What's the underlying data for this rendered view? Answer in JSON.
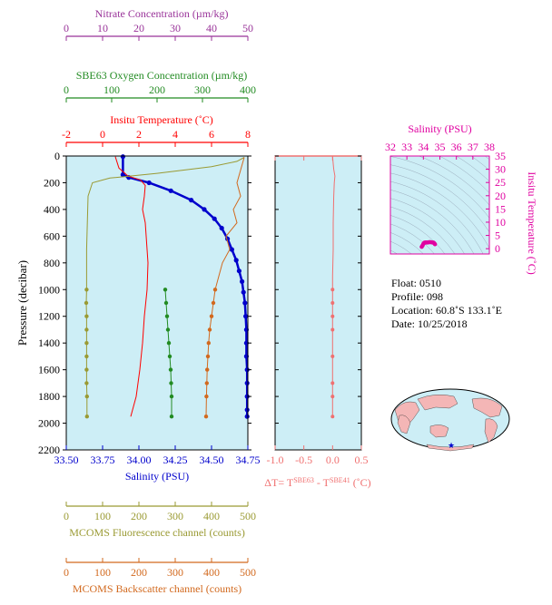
{
  "colors": {
    "nitrate": "#993399",
    "oxygen": "#228b22",
    "temperature": "#ff0000",
    "salinity": "#0000cc",
    "fluorescence": "#9a9a33",
    "backscatter": "#d2691e",
    "dt": "#f07070",
    "ts": "#e000a0",
    "plot_bg": "#cdeef6",
    "land": "#f4b6b6"
  },
  "main_axes": {
    "ylabel": "Pressure (decibar)",
    "yticks": [
      "0",
      "200",
      "400",
      "600",
      "800",
      "1000",
      "1200",
      "1400",
      "1600",
      "1800",
      "2000",
      "2200"
    ],
    "top_axes": [
      {
        "key": "nitrate",
        "label": "Nitrate Concentration (µm/kg)",
        "ticks": [
          "0",
          "10",
          "20",
          "30",
          "40",
          "50"
        ]
      },
      {
        "key": "oxygen",
        "label": "SBE63 Oxygen Concentration (µm/kg)",
        "ticks": [
          "0",
          "100",
          "200",
          "300",
          "400"
        ]
      },
      {
        "key": "temperature",
        "label": "Insitu Temperature (˚C)",
        "ticks": [
          "-2",
          "0",
          "2",
          "4",
          "6",
          "8"
        ]
      }
    ],
    "bottom_axes": [
      {
        "key": "salinity",
        "label": "Salinity (PSU)",
        "ticks": [
          "33.50",
          "33.75",
          "34.00",
          "34.25",
          "34.50",
          "34.75"
        ]
      },
      {
        "key": "fluorescence",
        "label": "MCOMS Fluorescence channel (counts)",
        "ticks": [
          "0",
          "100",
          "200",
          "300",
          "400",
          "500"
        ]
      },
      {
        "key": "backscatter",
        "label": "MCOMS Backscatter channel (counts)",
        "ticks": [
          "0",
          "100",
          "200",
          "300",
          "400",
          "500"
        ]
      }
    ]
  },
  "dt_panel": {
    "xticks": [
      "-1.0",
      "-0.5",
      "0.0",
      "0.5"
    ],
    "xlabel_prefix": "ΔT= T",
    "xlabel_sup1": "SBE63",
    "xlabel_mid": " - T",
    "xlabel_sup2": "SBE41",
    "xlabel_suffix": " (˚C)"
  },
  "ts_panel": {
    "xlabel": "Salinity (PSU)",
    "xticks": [
      "32",
      "33",
      "34",
      "35",
      "36",
      "37",
      "38"
    ],
    "ylabel": "Insitu Temperature (˚C)",
    "yticks": [
      "0",
      "5",
      "10",
      "15",
      "20",
      "25",
      "30",
      "35"
    ]
  },
  "info": {
    "float": "Float:  0510",
    "profile": "Profile:  098",
    "location": "Location:  60.8˚S  133.1˚E",
    "date": "Date:  10/25/2018"
  },
  "chart_data": [
    {
      "type": "line",
      "title": "",
      "ylabel": "Pressure (decibar)",
      "ylim": [
        2200,
        0
      ],
      "series": [
        {
          "name": "Salinity (PSU)",
          "axis": "salinity",
          "xlim": [
            33.5,
            34.75
          ],
          "x": [
            33.89,
            33.89,
            33.93,
            34.07,
            34.22,
            34.36,
            34.45,
            34.52,
            34.57,
            34.61,
            34.64,
            34.67,
            34.69,
            34.71,
            34.72,
            34.73,
            34.735,
            34.74,
            34.74,
            34.74,
            34.745,
            34.745,
            34.745,
            34.745,
            34.745
          ],
          "y": [
            5,
            140,
            160,
            200,
            260,
            330,
            400,
            470,
            540,
            620,
            700,
            780,
            860,
            940,
            1020,
            1100,
            1200,
            1300,
            1400,
            1500,
            1600,
            1700,
            1800,
            1900,
            1950
          ]
        },
        {
          "name": "Insitu Temperature (˚C)",
          "axis": "temperature",
          "xlim": [
            -2,
            8
          ],
          "x": [
            0.7,
            0.9,
            1.4,
            2.1,
            2.35,
            2.3,
            2.2,
            2.35,
            2.4,
            2.5,
            2.45,
            2.3,
            2.2,
            2.05,
            1.85,
            1.55
          ],
          "y": [
            5,
            90,
            150,
            180,
            220,
            300,
            400,
            500,
            600,
            800,
            1000,
            1200,
            1400,
            1600,
            1800,
            1950
          ]
        },
        {
          "name": "SBE63 Oxygen Concentration (µm/kg)",
          "axis": "oxygen",
          "xlim": [
            0,
            400
          ],
          "x": [
            218,
            220,
            222,
            224,
            226,
            228,
            230,
            231,
            232,
            232
          ],
          "y": [
            1000,
            1100,
            1200,
            1300,
            1400,
            1500,
            1600,
            1700,
            1800,
            1950
          ]
        },
        {
          "name": "MCOMS Fluorescence channel (counts)",
          "axis": "fluorescence",
          "xlim": [
            0,
            500
          ],
          "x": [
            490,
            470,
            400,
            250,
            120,
            72,
            60,
            58,
            56,
            56,
            55,
            56,
            56,
            56,
            56,
            56,
            56,
            57,
            57
          ],
          "y": [
            10,
            40,
            80,
            130,
            165,
            200,
            300,
            500,
            700,
            1000,
            1100,
            1200,
            1300,
            1400,
            1500,
            1600,
            1700,
            1800,
            1950
          ]
        },
        {
          "name": "MCOMS Backscatter channel (counts)",
          "axis": "backscatter",
          "xlim": [
            0,
            500
          ],
          "x": [
            490,
            470,
            480,
            460,
            470,
            440,
            450,
            430,
            420,
            410,
            405,
            400,
            395,
            392,
            390,
            388,
            387,
            386,
            385
          ],
          "y": [
            10,
            200,
            300,
            400,
            500,
            600,
            700,
            800,
            900,
            1000,
            1100,
            1200,
            1300,
            1400,
            1500,
            1600,
            1700,
            1800,
            1950
          ]
        }
      ]
    },
    {
      "type": "line",
      "title": "",
      "xlabel": "ΔT= T SBE63 - T SBE41 (˚C)",
      "xlim": [
        -1.0,
        0.5
      ],
      "ylim": [
        2200,
        0
      ],
      "series": [
        {
          "x": [
            0.0,
            0.02,
            0.04,
            0.03,
            0.02,
            0.01,
            0.01,
            0.0,
            0.0,
            0.0,
            0.0,
            0.0,
            0.0,
            0.0,
            0.0,
            0.0
          ],
          "y": [
            5,
            100,
            150,
            200,
            300,
            500,
            700,
            900,
            1000,
            1100,
            1200,
            1300,
            1500,
            1700,
            1800,
            1950
          ]
        }
      ]
    },
    {
      "type": "scatter",
      "title": "",
      "xlabel": "Salinity (PSU)",
      "ylabel": "Insitu Temperature (˚C)",
      "xlim": [
        32,
        38
      ],
      "ylim": [
        -2,
        35
      ],
      "series": [
        {
          "x": [
            33.9,
            33.95,
            34.0,
            34.05,
            34.1,
            34.15,
            34.2,
            34.3,
            34.4,
            34.5,
            34.6,
            34.65,
            34.7
          ],
          "y": [
            0.7,
            1.2,
            1.8,
            2.2,
            2.3,
            2.35,
            2.3,
            2.4,
            2.5,
            2.4,
            2.3,
            2.1,
            1.7
          ]
        }
      ]
    }
  ]
}
